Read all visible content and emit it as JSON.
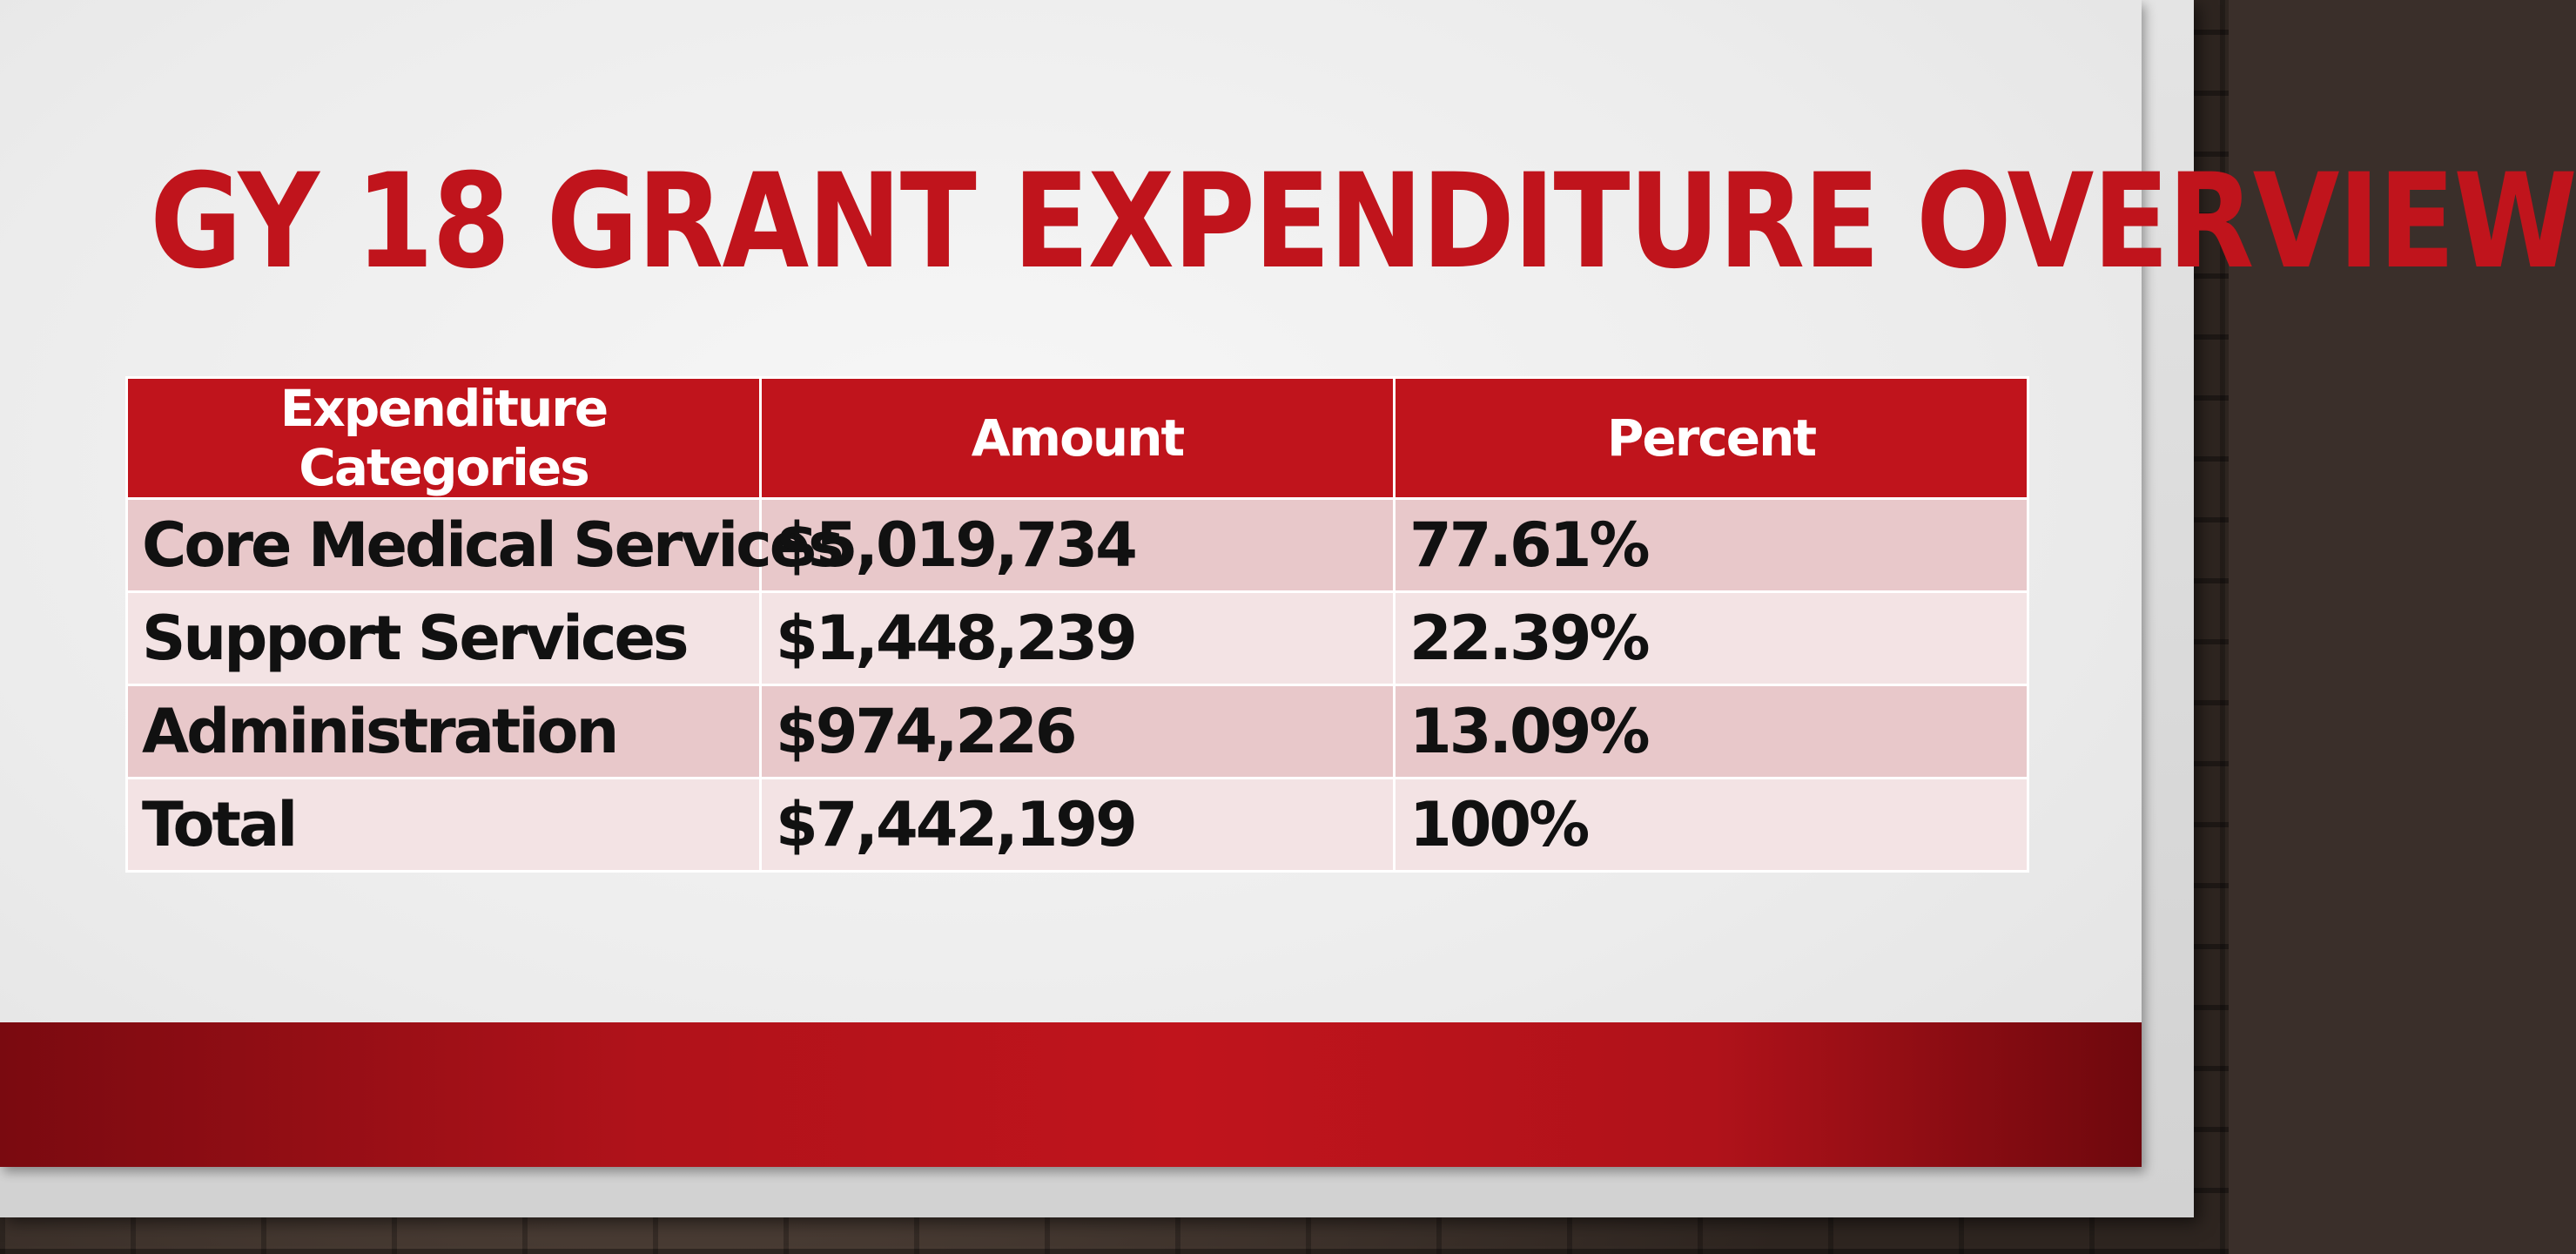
{
  "slide": {
    "title": "GY 18 GRANT EXPENDITURE OVERVIEW"
  },
  "table": {
    "headers": [
      "Expenditure Categories",
      "Amount",
      "Percent"
    ],
    "rows": [
      [
        "Core Medical Services",
        "$5,019,734",
        "77.61%"
      ],
      [
        "Support Services",
        "$1,448,239",
        "22.39%"
      ],
      [
        "Administration",
        "$974,226",
        "13.09%"
      ],
      [
        "Total",
        "$7,442,199",
        "100%"
      ]
    ]
  },
  "colors": {
    "accent_red": "#c0141c",
    "row_dark": "#e8c8ca",
    "row_light": "#f3e3e4"
  }
}
